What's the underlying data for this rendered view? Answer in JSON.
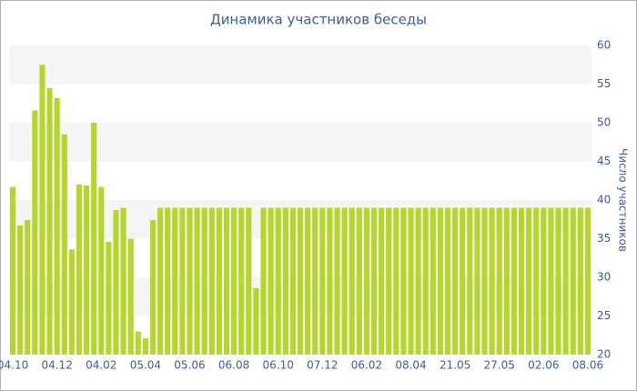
{
  "chart_data": {
    "type": "bar",
    "title": "Динамика участников беседы",
    "y_axis_label": "Число участников",
    "categories": [
      "04.10",
      null,
      null,
      null,
      null,
      null,
      "04.12",
      null,
      null,
      null,
      null,
      null,
      "04.02",
      null,
      null,
      null,
      null,
      null,
      "05.04",
      null,
      null,
      null,
      null,
      null,
      "05.06",
      null,
      null,
      null,
      null,
      null,
      "06.08",
      null,
      null,
      null,
      null,
      null,
      "06.10",
      null,
      null,
      null,
      null,
      null,
      "07.12",
      null,
      null,
      null,
      null,
      null,
      "06.02",
      null,
      null,
      null,
      null,
      null,
      "08.04",
      null,
      null,
      null,
      null,
      null,
      "21.05",
      null,
      null,
      null,
      null,
      null,
      "27.05",
      null,
      null,
      null,
      null,
      null,
      "02.06",
      null,
      null,
      null,
      null,
      null,
      "08.06"
    ],
    "values": [
      41.7,
      36.7,
      37.4,
      51.6,
      57.5,
      54.5,
      53.2,
      48.5,
      33.6,
      42,
      41.9,
      50,
      41.7,
      34.6,
      38.7,
      39,
      35,
      23,
      22.1,
      37.4,
      39,
      39,
      39,
      39,
      39,
      39,
      39,
      39,
      39,
      39,
      39,
      39,
      39,
      28.6,
      39,
      39,
      39,
      39,
      39,
      39,
      39,
      39,
      39,
      39,
      39,
      39,
      39,
      39,
      39,
      39,
      39,
      39,
      39,
      39,
      39,
      39,
      39,
      39,
      39,
      39,
      39,
      39,
      39,
      39,
      39,
      39,
      39,
      39,
      39,
      39,
      39,
      39,
      39,
      39,
      39,
      39,
      39,
      39,
      39
    ],
    "color": "#b5d62c",
    "ylim": [
      20,
      60
    ],
    "yticks": [
      20,
      25,
      30,
      35,
      40,
      45,
      50,
      55,
      60
    ],
    "y_axis_side": "right",
    "bands": true
  }
}
